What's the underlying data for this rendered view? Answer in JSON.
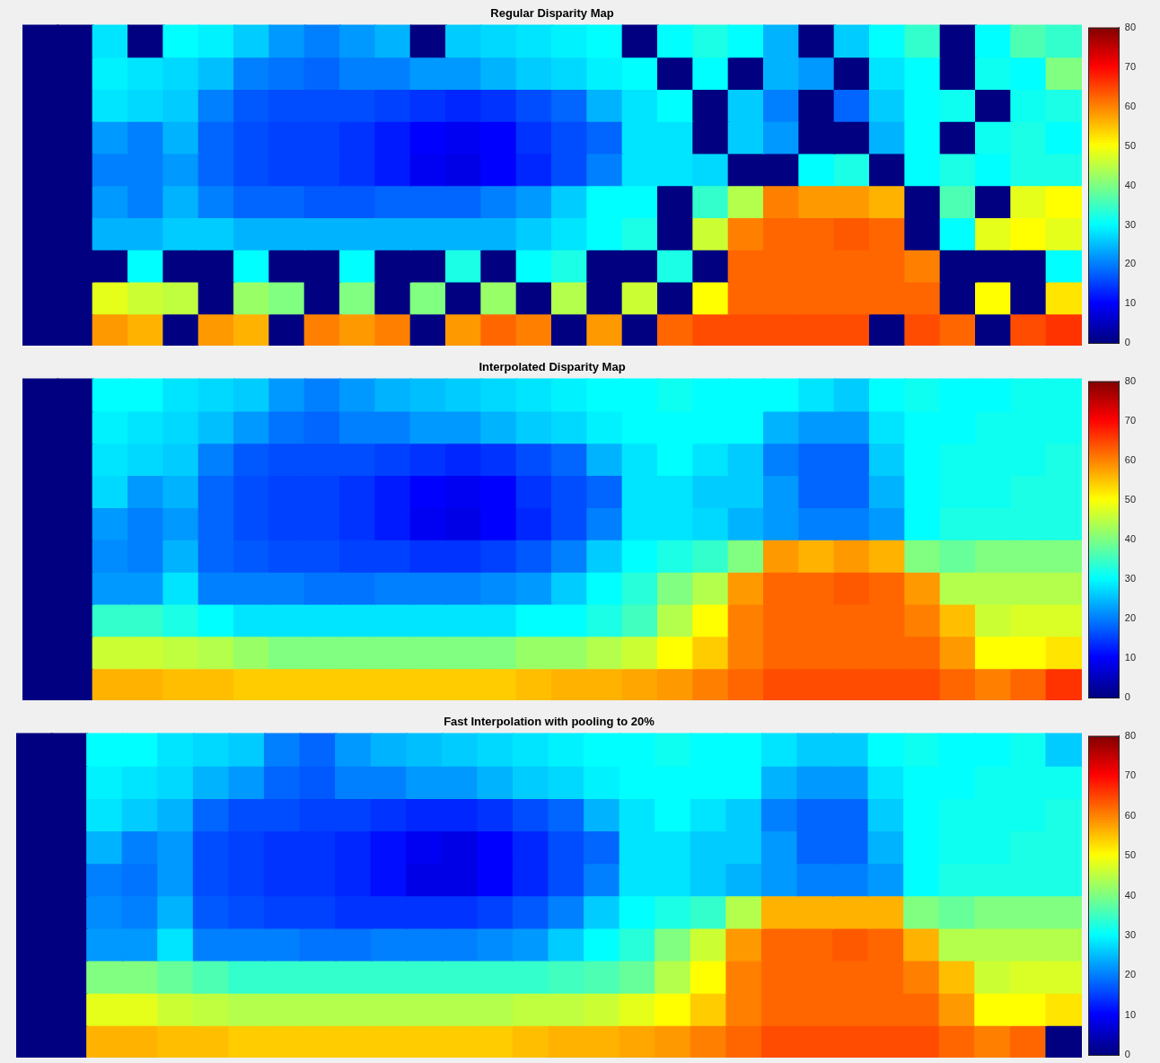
{
  "chart_data": [
    {
      "type": "heatmap",
      "title": "Regular Disparity Map",
      "tick_labels": false,
      "colorbar": {
        "lim": [
          0,
          80
        ],
        "ticks": [
          0,
          10,
          20,
          30,
          40,
          50,
          60,
          70,
          80
        ]
      },
      "cells": [
        [
          0,
          0,
          28,
          0,
          30,
          29,
          26,
          22,
          20,
          22,
          24,
          0,
          26,
          27,
          28,
          29,
          30,
          0,
          30,
          32,
          30,
          24,
          0,
          26,
          30,
          34,
          0,
          30,
          36,
          34
        ],
        [
          0,
          0,
          29,
          28,
          27,
          25,
          20,
          19,
          18,
          20,
          20,
          22,
          22,
          24,
          26,
          27,
          29,
          30,
          0,
          30,
          0,
          24,
          22,
          0,
          28,
          30,
          0,
          31,
          30,
          40
        ],
        [
          0,
          0,
          28,
          27,
          26,
          20,
          17,
          16,
          16,
          16,
          15,
          14,
          13,
          14,
          16,
          18,
          24,
          28,
          30,
          0,
          26,
          20,
          0,
          18,
          26,
          30,
          31,
          0,
          31,
          32
        ],
        [
          0,
          0,
          22,
          20,
          24,
          18,
          16,
          15,
          15,
          14,
          12,
          10,
          9,
          10,
          14,
          16,
          18,
          28,
          28,
          0,
          26,
          22,
          0,
          0,
          24,
          30,
          0,
          31,
          32,
          30
        ],
        [
          0,
          0,
          20,
          20,
          22,
          18,
          16,
          15,
          15,
          14,
          12,
          9,
          8,
          10,
          13,
          16,
          20,
          28,
          28,
          27,
          0,
          0,
          30,
          32,
          0,
          30,
          32,
          30,
          32,
          32
        ],
        [
          0,
          0,
          22,
          20,
          24,
          20,
          18,
          18,
          17,
          17,
          18,
          18,
          18,
          20,
          22,
          26,
          30,
          30,
          0,
          34,
          44,
          60,
          58,
          58,
          56,
          0,
          36,
          0,
          48,
          50
        ],
        [
          0,
          0,
          24,
          24,
          26,
          26,
          24,
          24,
          24,
          24,
          24,
          24,
          24,
          24,
          26,
          28,
          30,
          32,
          0,
          46,
          60,
          62,
          62,
          63,
          62,
          0,
          30,
          48,
          50,
          48
        ],
        [
          0,
          0,
          0,
          30,
          0,
          0,
          30,
          0,
          0,
          30,
          0,
          0,
          32,
          0,
          30,
          32,
          0,
          0,
          32,
          0,
          62,
          62,
          62,
          62,
          62,
          60,
          0,
          0,
          0,
          30
        ],
        [
          0,
          0,
          48,
          46,
          45,
          0,
          42,
          40,
          0,
          40,
          0,
          40,
          0,
          42,
          0,
          44,
          0,
          46,
          0,
          50,
          62,
          62,
          62,
          62,
          62,
          62,
          0,
          50,
          0,
          52
        ],
        [
          0,
          0,
          58,
          56,
          0,
          58,
          56,
          0,
          60,
          58,
          60,
          0,
          58,
          62,
          60,
          0,
          58,
          0,
          62,
          64,
          64,
          64,
          64,
          64,
          0,
          64,
          62,
          0,
          64,
          66
        ]
      ]
    },
    {
      "type": "heatmap",
      "title": "Interpolated Disparity Map",
      "tick_labels": false,
      "colorbar": {
        "lim": [
          0,
          80
        ],
        "ticks": [
          0,
          10,
          20,
          30,
          40,
          50,
          60,
          70,
          80
        ]
      },
      "cells": [
        [
          0,
          0,
          30,
          30,
          28,
          27,
          26,
          22,
          20,
          22,
          24,
          25,
          26,
          27,
          28,
          29,
          30,
          30,
          31,
          30,
          30,
          30,
          28,
          26,
          30,
          31,
          30,
          30,
          31,
          31
        ],
        [
          0,
          0,
          29,
          28,
          27,
          25,
          22,
          19,
          18,
          20,
          20,
          22,
          22,
          24,
          26,
          27,
          29,
          30,
          30,
          30,
          30,
          24,
          22,
          22,
          28,
          30,
          30,
          31,
          31,
          31
        ],
        [
          0,
          0,
          28,
          27,
          26,
          20,
          17,
          16,
          16,
          16,
          15,
          14,
          13,
          14,
          16,
          18,
          24,
          28,
          30,
          28,
          26,
          20,
          18,
          18,
          26,
          30,
          31,
          31,
          31,
          32
        ],
        [
          0,
          0,
          27,
          22,
          24,
          18,
          16,
          15,
          15,
          14,
          12,
          10,
          9,
          10,
          14,
          16,
          18,
          28,
          28,
          26,
          26,
          22,
          18,
          18,
          24,
          30,
          31,
          31,
          32,
          32
        ],
        [
          0,
          0,
          22,
          20,
          22,
          18,
          16,
          15,
          15,
          14,
          12,
          9,
          8,
          10,
          13,
          16,
          20,
          28,
          28,
          27,
          24,
          22,
          20,
          20,
          22,
          30,
          32,
          32,
          32,
          32
        ],
        [
          0,
          0,
          21,
          20,
          24,
          18,
          17,
          16,
          16,
          15,
          15,
          14,
          14,
          15,
          17,
          20,
          26,
          30,
          32,
          34,
          40,
          58,
          56,
          58,
          56,
          40,
          38,
          40,
          40,
          40
        ],
        [
          0,
          0,
          22,
          22,
          28,
          20,
          20,
          20,
          19,
          19,
          20,
          20,
          20,
          21,
          22,
          26,
          30,
          33,
          40,
          44,
          58,
          62,
          62,
          63,
          62,
          58,
          44,
          44,
          44,
          44
        ],
        [
          0,
          0,
          34,
          34,
          32,
          30,
          28,
          28,
          28,
          28,
          28,
          28,
          28,
          28,
          30,
          30,
          32,
          35,
          44,
          50,
          60,
          62,
          62,
          62,
          62,
          60,
          55,
          46,
          47,
          47
        ],
        [
          0,
          0,
          46,
          46,
          45,
          44,
          42,
          40,
          40,
          40,
          40,
          40,
          40,
          40,
          42,
          42,
          44,
          46,
          50,
          54,
          60,
          62,
          62,
          62,
          62,
          62,
          58,
          50,
          50,
          52
        ],
        [
          0,
          0,
          56,
          56,
          55,
          55,
          54,
          54,
          54,
          54,
          54,
          54,
          54,
          54,
          55,
          56,
          56,
          57,
          58,
          60,
          62,
          64,
          64,
          64,
          64,
          64,
          62,
          60,
          62,
          66
        ]
      ]
    },
    {
      "type": "heatmap",
      "title": "Fast Interpolation with pooling to 20%",
      "tick_labels": false,
      "colorbar": {
        "lim": [
          0,
          80
        ],
        "ticks": [
          0,
          10,
          20,
          30,
          40,
          50,
          60,
          70,
          80
        ]
      },
      "cells": [
        [
          0,
          0,
          30,
          30,
          28,
          27,
          26,
          20,
          18,
          22,
          24,
          25,
          26,
          27,
          28,
          29,
          30,
          30,
          31,
          30,
          30,
          28,
          26,
          26,
          30,
          31,
          30,
          30,
          31,
          26
        ],
        [
          0,
          0,
          29,
          28,
          27,
          24,
          22,
          18,
          17,
          20,
          20,
          22,
          22,
          24,
          26,
          27,
          29,
          30,
          30,
          30,
          30,
          24,
          22,
          22,
          28,
          30,
          30,
          31,
          31,
          31
        ],
        [
          0,
          0,
          28,
          26,
          24,
          18,
          16,
          16,
          15,
          15,
          14,
          13,
          13,
          14,
          16,
          18,
          24,
          28,
          30,
          28,
          26,
          20,
          18,
          18,
          26,
          30,
          31,
          31,
          31,
          32
        ],
        [
          0,
          0,
          24,
          20,
          22,
          16,
          15,
          14,
          14,
          13,
          11,
          9,
          8,
          10,
          13,
          16,
          18,
          28,
          28,
          26,
          26,
          22,
          18,
          18,
          24,
          30,
          31,
          31,
          32,
          32
        ],
        [
          0,
          0,
          20,
          19,
          22,
          16,
          15,
          14,
          14,
          13,
          11,
          8,
          8,
          10,
          13,
          16,
          20,
          28,
          28,
          26,
          24,
          22,
          20,
          20,
          22,
          30,
          32,
          32,
          32,
          32
        ],
        [
          0,
          0,
          21,
          20,
          24,
          17,
          16,
          15,
          15,
          14,
          14,
          14,
          14,
          15,
          17,
          20,
          26,
          30,
          32,
          34,
          44,
          56,
          56,
          56,
          56,
          40,
          38,
          40,
          40,
          40
        ],
        [
          0,
          0,
          22,
          22,
          28,
          20,
          20,
          20,
          19,
          19,
          20,
          20,
          20,
          21,
          22,
          26,
          30,
          33,
          40,
          46,
          58,
          62,
          62,
          63,
          62,
          56,
          44,
          44,
          44,
          44
        ],
        [
          0,
          0,
          40,
          40,
          38,
          36,
          34,
          34,
          34,
          34,
          34,
          34,
          34,
          34,
          34,
          35,
          36,
          38,
          44,
          50,
          60,
          62,
          62,
          62,
          62,
          60,
          55,
          46,
          47,
          47
        ],
        [
          0,
          0,
          48,
          48,
          46,
          45,
          44,
          44,
          44,
          44,
          44,
          44,
          44,
          44,
          45,
          45,
          46,
          48,
          50,
          54,
          60,
          62,
          62,
          62,
          62,
          62,
          58,
          50,
          50,
          52
        ],
        [
          0,
          0,
          56,
          56,
          55,
          55,
          54,
          54,
          54,
          54,
          54,
          54,
          54,
          54,
          55,
          56,
          56,
          57,
          58,
          60,
          62,
          64,
          64,
          64,
          64,
          64,
          62,
          60,
          62,
          0
        ]
      ]
    }
  ]
}
